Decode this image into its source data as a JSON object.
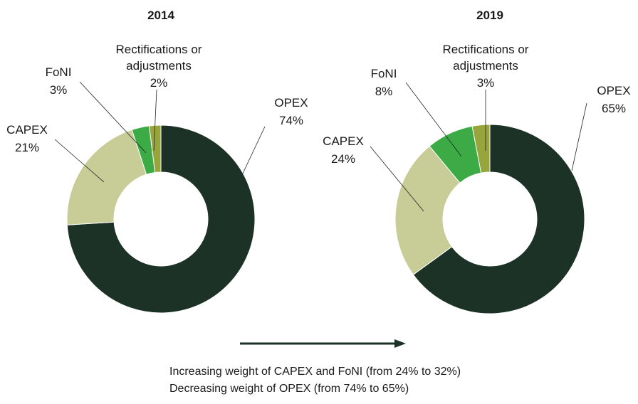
{
  "chart_data": [
    {
      "type": "pie",
      "title": "2014",
      "slices": [
        {
          "name": "OPEX",
          "value": 74,
          "label": "74%",
          "color": "#1c3226"
        },
        {
          "name": "CAPEX",
          "value": 21,
          "label": "21%",
          "color": "#c8cc96"
        },
        {
          "name": "FoNI",
          "value": 3,
          "label": "3%",
          "color": "#3caa45"
        },
        {
          "name": "Rectifications or adjustments",
          "value": 2,
          "label": "2%",
          "color": "#97a53c"
        }
      ]
    },
    {
      "type": "pie",
      "title": "2019",
      "slices": [
        {
          "name": "OPEX",
          "value": 65,
          "label": "65%",
          "color": "#1c3226"
        },
        {
          "name": "CAPEX",
          "value": 24,
          "label": "24%",
          "color": "#c8cc96"
        },
        {
          "name": "FoNI",
          "value": 8,
          "label": "8%",
          "color": "#3caa45"
        },
        {
          "name": "Rectifications or adjustments",
          "value": 3,
          "label": "3%",
          "color": "#97a53c"
        }
      ]
    }
  ],
  "label_lines": {
    "rect_line1": "Rectifications or",
    "rect_line2": "adjustments"
  },
  "notes": {
    "line1": "Increasing weight of CAPEX and FoNI (from 24% to 32%)",
    "line2": "Decreasing weight of OPEX (from 74% to 65%)"
  }
}
